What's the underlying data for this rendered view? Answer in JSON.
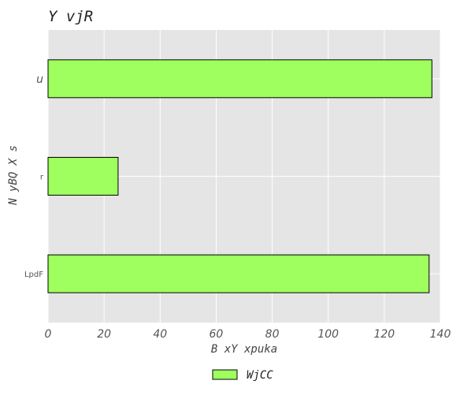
{
  "chart_data": {
    "type": "bar",
    "orientation": "horizontal",
    "title": "Y  vjR",
    "xlabel": "B  xY xpuka",
    "ylabel": "N yBQ  X  s",
    "categories": [
      "u",
      "r",
      "LpdF"
    ],
    "series": [
      {
        "name": "WjCC",
        "values": [
          137,
          25,
          136
        ],
        "color": "#9eff5e"
      }
    ],
    "xlim": [
      0,
      140
    ],
    "xticks": [
      0,
      20,
      40,
      60,
      80,
      100,
      120,
      140
    ],
    "grid": true,
    "legend_position": "bottom-center"
  },
  "colors": {
    "plot_background": "#e5e5e5",
    "grid": "#ffffff",
    "bar_edge": "#000000"
  }
}
